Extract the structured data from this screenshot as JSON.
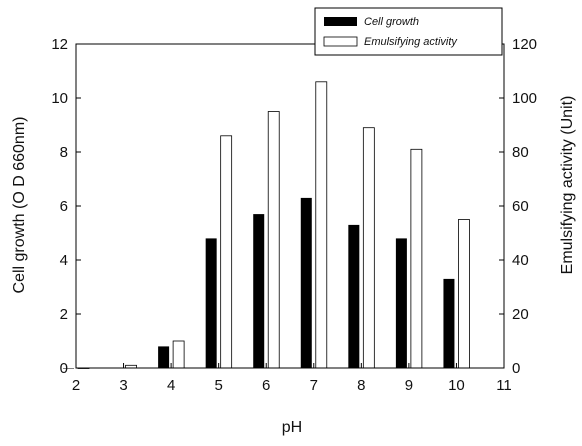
{
  "chart_data": {
    "type": "bar",
    "xlabel": "pH",
    "ylabel": "Cell growth (O D 660nm)",
    "y2label": "Emulsifying activity (Unit)",
    "x_ticks": [
      "2",
      "3",
      "4",
      "5",
      "6",
      "7",
      "8",
      "9",
      "10",
      "11"
    ],
    "y_ticks": [
      "0",
      "2",
      "4",
      "6",
      "8",
      "10",
      "12"
    ],
    "y2_ticks": [
      "0",
      "20",
      "40",
      "60",
      "80",
      "100",
      "120"
    ],
    "xlim": [
      2,
      11
    ],
    "ylim": [
      0,
      12
    ],
    "y2lim": [
      0,
      120
    ],
    "categories": [
      2,
      3,
      4,
      5,
      6,
      7,
      8,
      9,
      10
    ],
    "grid": false,
    "legend_position": "top-right",
    "series": [
      {
        "name": "Cell growth",
        "axis": "left",
        "color": "#000000",
        "values": [
          0,
          0,
          0.8,
          4.8,
          5.7,
          6.3,
          5.3,
          4.8,
          3.3
        ]
      },
      {
        "name": "Emulsifying activity",
        "axis": "right",
        "color": "#ffffff",
        "values": [
          0,
          1,
          10,
          86,
          95,
          106,
          89,
          81,
          55
        ]
      }
    ]
  }
}
